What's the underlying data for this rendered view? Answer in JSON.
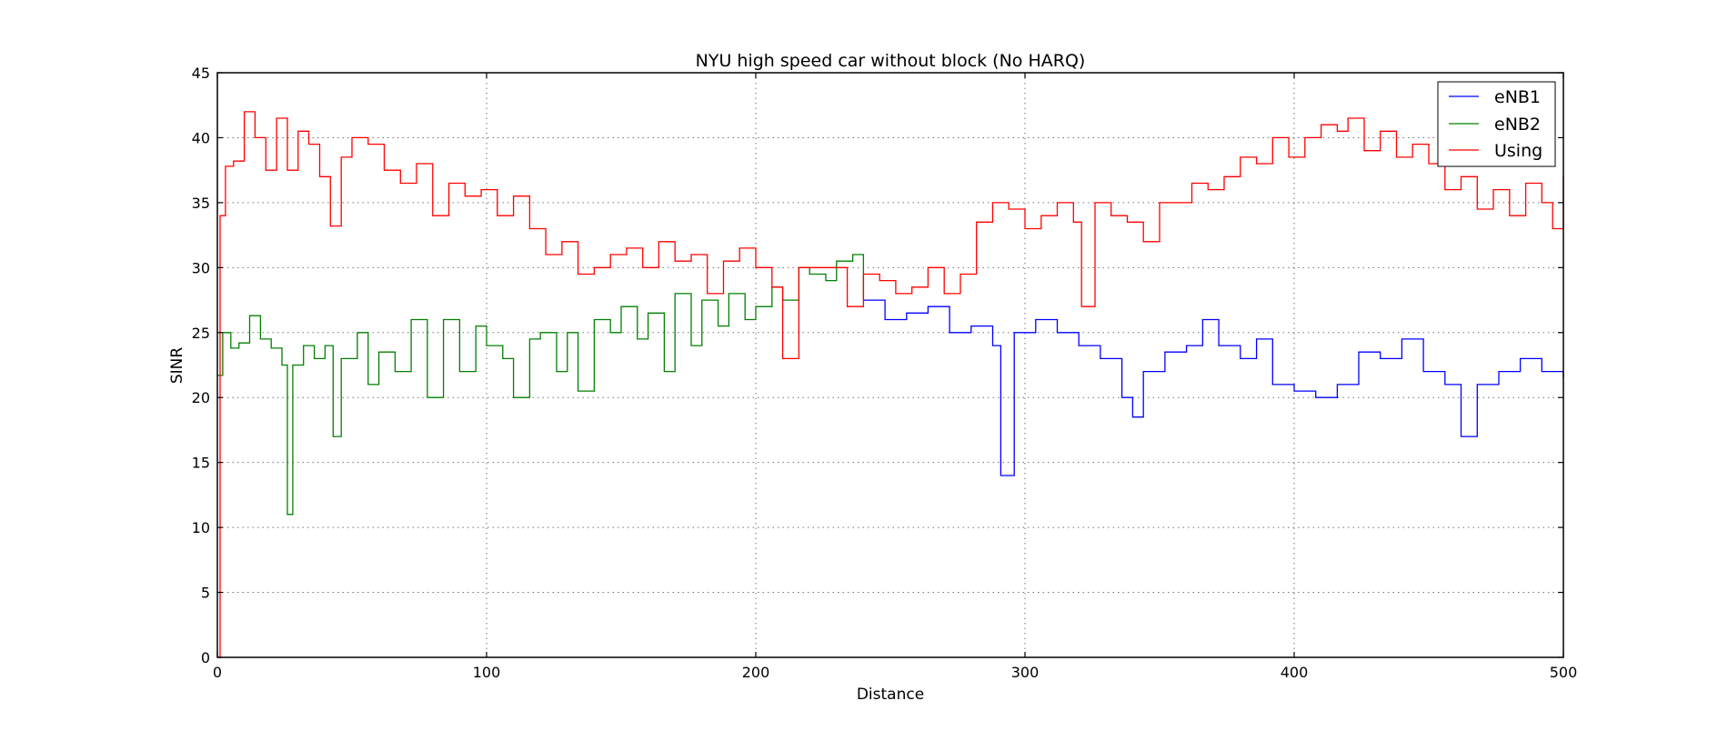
{
  "chart_data": {
    "type": "line",
    "title": "NYU high speed car without block (No HARQ)",
    "xlabel": "Distance",
    "ylabel": "SINR",
    "xlim": [
      0,
      500
    ],
    "ylim": [
      0,
      45
    ],
    "xticks": [
      0,
      100,
      200,
      300,
      400,
      500
    ],
    "yticks": [
      0,
      5,
      10,
      15,
      20,
      25,
      30,
      35,
      40,
      45
    ],
    "grid": true,
    "legend_position": "top-right",
    "series": [
      {
        "name": "eNB1",
        "color": "#0000ff",
        "x": [
          240,
          248,
          256,
          264,
          272,
          280,
          288,
          291,
          296,
          304,
          312,
          320,
          328,
          336,
          340,
          344,
          352,
          360,
          366,
          372,
          380,
          386,
          392,
          400,
          408,
          416,
          424,
          432,
          440,
          448,
          456,
          462,
          468,
          476,
          484,
          492,
          500
        ],
        "y": [
          27.5,
          26,
          26.5,
          27,
          25,
          25.5,
          24,
          14,
          25,
          26,
          25,
          24,
          23,
          20,
          18.5,
          22,
          23.5,
          24,
          26,
          24,
          23,
          24.5,
          21,
          20.5,
          20,
          21,
          23.5,
          23,
          24.5,
          22,
          21,
          17,
          21,
          22,
          23,
          22,
          21.5
        ]
      },
      {
        "name": "eNB2",
        "color": "#008000",
        "x": [
          0,
          2,
          5,
          8,
          12,
          16,
          20,
          24,
          26,
          28,
          32,
          36,
          40,
          43,
          46,
          52,
          56,
          60,
          66,
          72,
          78,
          84,
          90,
          96,
          100,
          106,
          110,
          116,
          120,
          126,
          130,
          134,
          140,
          146,
          150,
          156,
          160,
          166,
          170,
          176,
          180,
          186,
          190,
          196,
          200,
          206,
          210,
          216,
          220,
          226,
          230,
          236,
          240
        ],
        "y": [
          21.7,
          25,
          23.8,
          24.2,
          26.3,
          24.5,
          23.8,
          22.5,
          11,
          22.5,
          24,
          23,
          24,
          17,
          23,
          25,
          21,
          23.5,
          22,
          26,
          20,
          26,
          22,
          25.5,
          24,
          23,
          20,
          24.5,
          25,
          22,
          25,
          20.5,
          26,
          25,
          27,
          24.5,
          26.5,
          22,
          28,
          24,
          27.5,
          25.5,
          28,
          26,
          27,
          28.5,
          27.5,
          30,
          29.5,
          29,
          30.5,
          31,
          27.5
        ]
      },
      {
        "name": "Using",
        "color": "#ff0000",
        "x": [
          0,
          1,
          3,
          6,
          10,
          14,
          18,
          22,
          26,
          30,
          34,
          38,
          42,
          46,
          50,
          56,
          62,
          68,
          74,
          80,
          86,
          92,
          98,
          104,
          110,
          116,
          122,
          128,
          134,
          140,
          146,
          152,
          158,
          164,
          170,
          176,
          182,
          188,
          194,
          200,
          206,
          210,
          216,
          222,
          228,
          234,
          240,
          246,
          252,
          258,
          264,
          270,
          276,
          282,
          288,
          294,
          300,
          306,
          312,
          318,
          321,
          326,
          332,
          338,
          344,
          350,
          356,
          362,
          368,
          374,
          380,
          386,
          392,
          398,
          404,
          410,
          416,
          420,
          426,
          432,
          438,
          444,
          450,
          456,
          462,
          468,
          474,
          480,
          486,
          492,
          496,
          500
        ],
        "y": [
          0,
          34,
          37.8,
          38.2,
          42,
          40,
          37.5,
          41.5,
          37.5,
          40.5,
          39.5,
          37,
          33.2,
          38.5,
          40,
          39.5,
          37.5,
          36.5,
          38,
          34,
          36.5,
          35.5,
          36,
          34,
          35.5,
          33,
          31,
          32,
          29.5,
          30,
          31,
          31.5,
          30,
          32,
          30.5,
          31,
          28,
          30.5,
          31.5,
          30,
          28.5,
          23,
          30,
          30,
          30,
          27,
          29.5,
          29,
          28,
          28.5,
          30,
          28,
          29.5,
          33.5,
          35,
          34.5,
          33,
          34,
          35,
          33.5,
          27,
          35,
          34,
          33.5,
          32,
          35,
          35,
          36.5,
          36,
          37,
          38.5,
          38,
          40,
          38.5,
          40,
          41,
          40.5,
          41.5,
          39,
          40.5,
          38.5,
          39.5,
          38,
          36,
          37,
          34.5,
          36,
          34,
          36.5,
          35,
          33,
          37
        ]
      }
    ]
  }
}
